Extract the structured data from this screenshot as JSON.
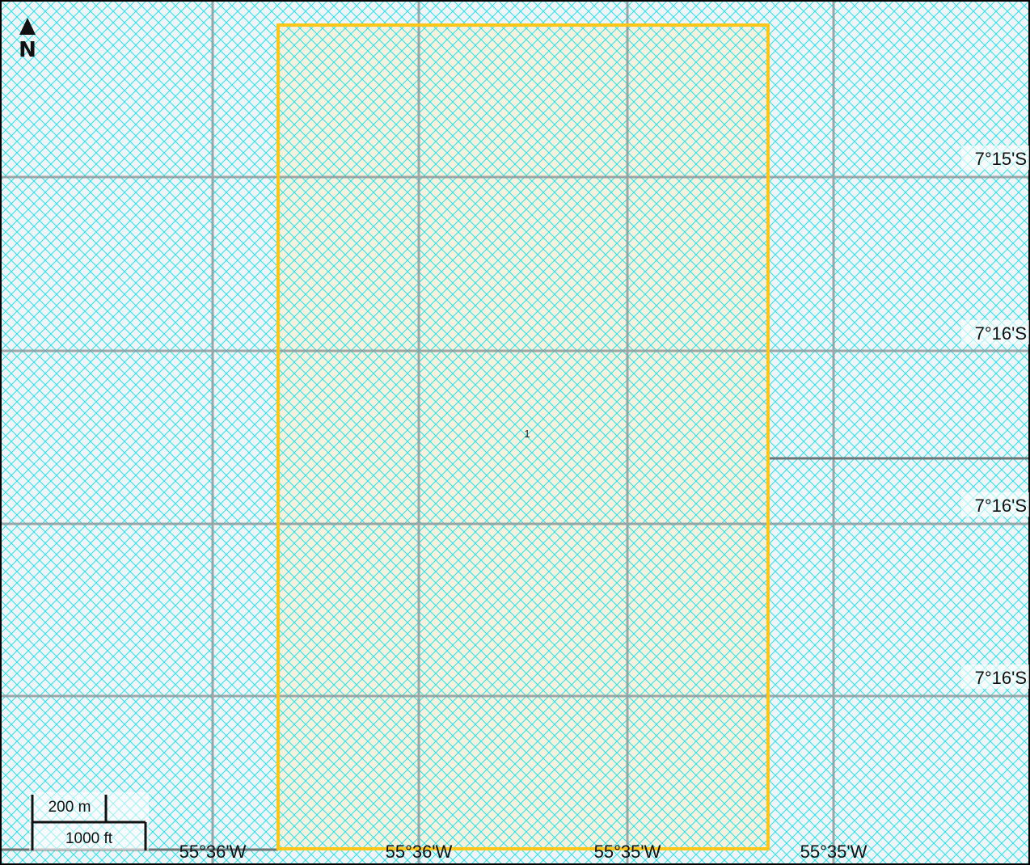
{
  "map": {
    "north_arrow_label": "N",
    "parcel": {
      "label": "1",
      "fill_color": "#f5f1dc",
      "outline_color": "#ffc61a"
    },
    "hatch_color": "#25e3ea",
    "grid_line_color": "#8f9a9c",
    "latitude_labels": [
      "7°15'S",
      "7°16'S",
      "7°16'S",
      "7°16'S"
    ],
    "longitude_labels": [
      "55°36'W",
      "55°36'W",
      "55°35'W",
      "55°35'W"
    ],
    "scale_bar": {
      "metric_label": "200 m",
      "imperial_label": "1000 ft"
    }
  }
}
